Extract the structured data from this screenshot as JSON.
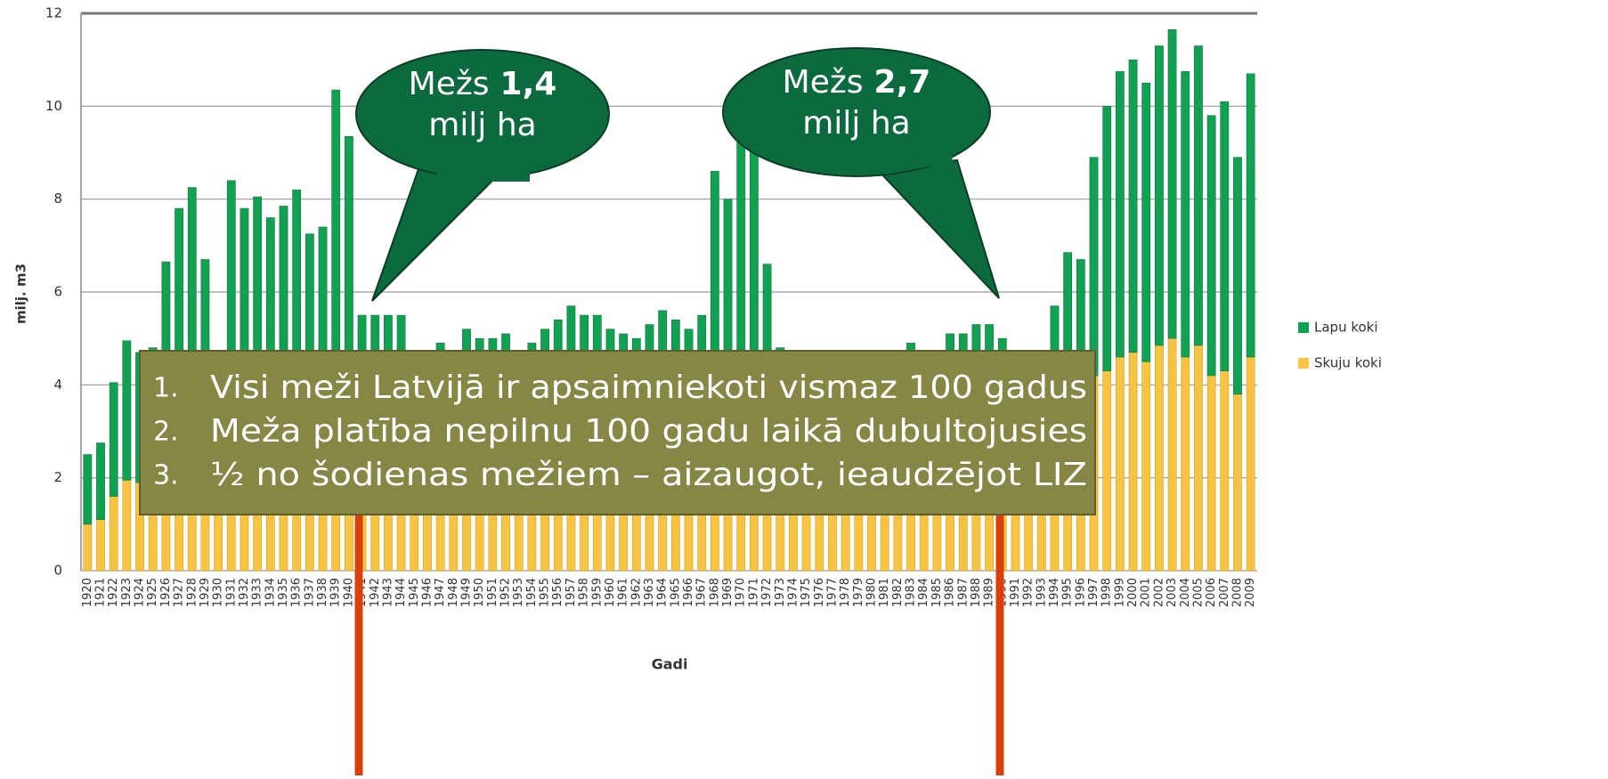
{
  "chart_data": {
    "type": "stacked_bar",
    "y_label": "milj. m3",
    "x_label": "Gadi",
    "categories": [
      "1920",
      "1921",
      "1922",
      "1923",
      "1924",
      "1925",
      "1926",
      "1927",
      "1928",
      "1929",
      "1930",
      "1931",
      "1932",
      "1933",
      "1934",
      "1935",
      "1936",
      "1937",
      "1938",
      "1939",
      "1940",
      "1941",
      "1942",
      "1943",
      "1944",
      "1945",
      "1946",
      "1947",
      "1948",
      "1949",
      "1950",
      "1951",
      "1952",
      "1953",
      "1954",
      "1955",
      "1956",
      "1957",
      "1958",
      "1959",
      "1960",
      "1961",
      "1962",
      "1963",
      "1964",
      "1965",
      "1966",
      "1967",
      "1968",
      "1969",
      "1970",
      "1971",
      "1972",
      "1973",
      "1974",
      "1975",
      "1976",
      "1977",
      "1978",
      "1979",
      "1980",
      "1981",
      "1982",
      "1983",
      "1984",
      "1985",
      "1986",
      "1987",
      "1988",
      "1989",
      "1990",
      "1991",
      "1992",
      "1993",
      "1994",
      "1995",
      "1996",
      "1997",
      "1998",
      "1999",
      "2000",
      "2001",
      "2002",
      "2003",
      "2004",
      "2005",
      "2006",
      "2007",
      "2008",
      "2009"
    ],
    "series": [
      {
        "name": "Skuju koki",
        "color": "#f6c343",
        "values": [
          1.0,
          1.1,
          1.6,
          1.95,
          1.9,
          2.0,
          2.3,
          2.5,
          2.6,
          2.4,
          2.0,
          2.6,
          2.5,
          2.5,
          2.4,
          2.5,
          2.6,
          2.4,
          2.4,
          3.0,
          2.9,
          2.2,
          2.2,
          2.2,
          2.2,
          2.0,
          2.0,
          2.1,
          2.0,
          2.2,
          2.1,
          2.1,
          2.1,
          2.0,
          2.1,
          2.2,
          2.2,
          2.3,
          2.2,
          2.2,
          2.1,
          2.1,
          2.1,
          2.2,
          2.3,
          2.2,
          2.2,
          2.3,
          3.0,
          2.9,
          3.2,
          3.2,
          2.6,
          2.2,
          2.2,
          2.2,
          2.2,
          2.2,
          2.2,
          2.2,
          2.2,
          2.3,
          2.3,
          2.4,
          2.3,
          2.3,
          2.5,
          2.5,
          2.6,
          2.6,
          2.5,
          2.8,
          2.9,
          3.0,
          3.4,
          3.8,
          3.8,
          4.2,
          4.3,
          4.6,
          4.7,
          4.5,
          4.85,
          5.0,
          4.6,
          4.85,
          4.2,
          4.3,
          3.8,
          4.6
        ]
      },
      {
        "name": "Lapu koki",
        "color": "#12a052",
        "values": [
          1.5,
          1.65,
          2.45,
          3.0,
          2.8,
          2.8,
          4.35,
          5.3,
          5.65,
          4.3,
          2.5,
          5.8,
          5.3,
          5.55,
          5.2,
          5.35,
          5.6,
          4.85,
          5.0,
          7.35,
          6.45,
          3.3,
          3.3,
          3.3,
          3.3,
          2.7,
          2.5,
          2.8,
          2.5,
          3.0,
          2.9,
          2.9,
          3.0,
          2.7,
          2.8,
          3.0,
          3.2,
          3.4,
          3.3,
          3.3,
          3.1,
          3.0,
          2.9,
          3.1,
          3.3,
          3.2,
          3.0,
          3.2,
          5.6,
          5.1,
          6.3,
          6.2,
          4.0,
          2.6,
          2.3,
          2.3,
          2.3,
          2.3,
          2.3,
          2.3,
          2.3,
          2.4,
          2.3,
          2.5,
          2.4,
          2.3,
          2.6,
          2.6,
          2.7,
          2.7,
          2.5,
          1.7,
          1.6,
          1.7,
          2.3,
          3.05,
          2.9,
          4.7,
          5.7,
          6.15,
          6.3,
          6.0,
          6.45,
          6.65,
          6.15,
          6.45,
          5.6,
          5.8,
          5.1,
          6.1
        ]
      }
    ],
    "ylim": [
      0,
      12
    ],
    "yticks": [
      0,
      2,
      4,
      6,
      8,
      10,
      12
    ],
    "grid": true,
    "legend": "right",
    "callouts": [
      {
        "prefix": "Mežs",
        "value": "1,4",
        "suffix": "milj ha"
      },
      {
        "prefix": "Mežs",
        "value": "2,7",
        "suffix": "milj ha"
      }
    ],
    "notes": [
      {
        "number": "1.",
        "text": "Visi meži Latvijā ir apsaimniekoti vismaz 100 gadus"
      },
      {
        "number": "2.",
        "text": "Meža platība nepilnu 100 gadu laikā dubultojusies"
      },
      {
        "number": "3.",
        "text": "½ no šodienas mežiem – aizaugot, ieaudzējot LIZ"
      }
    ]
  }
}
